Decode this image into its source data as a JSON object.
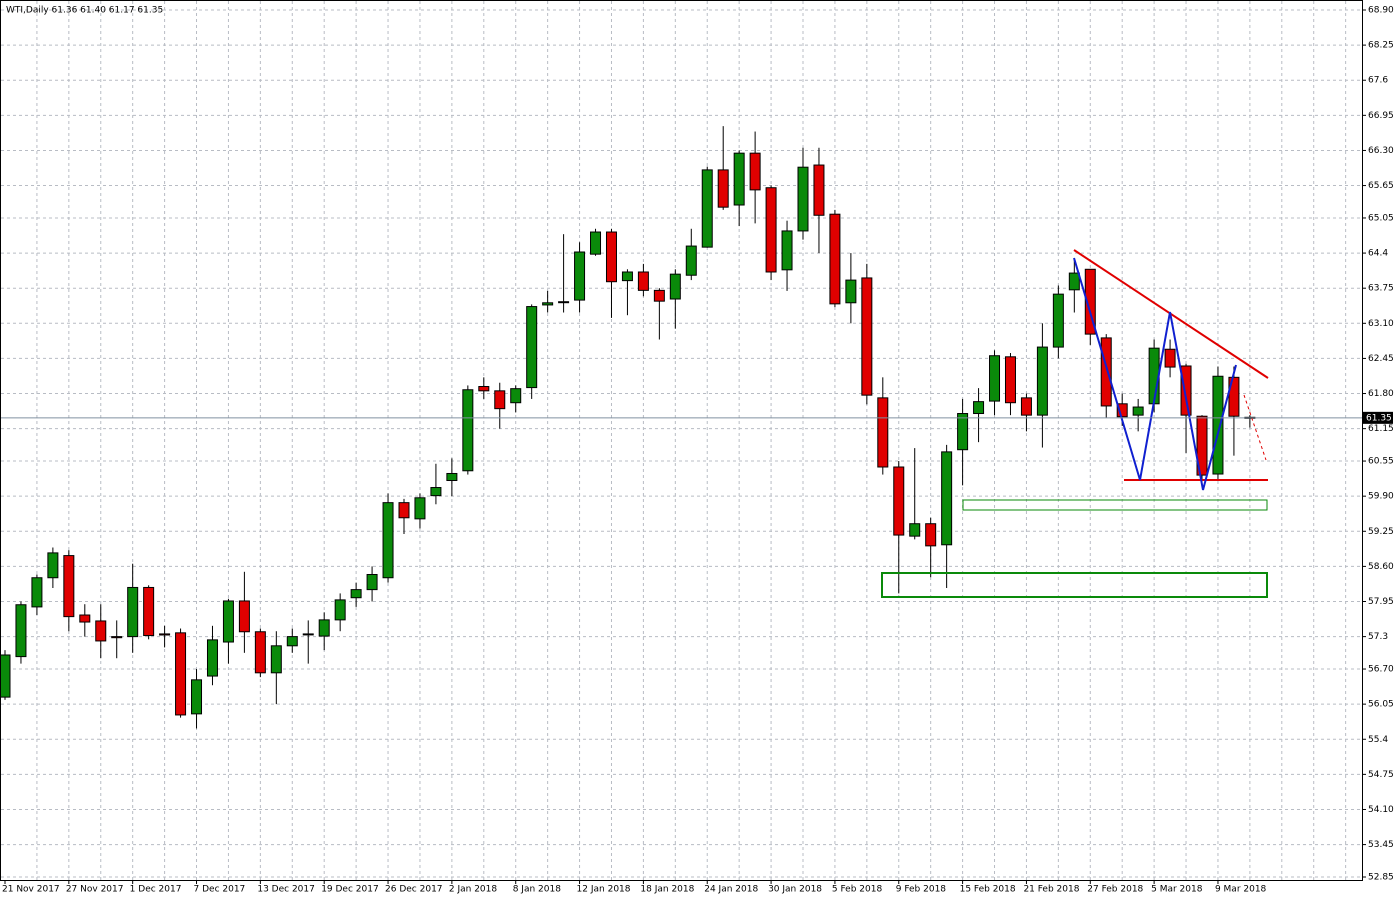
{
  "chart_data": {
    "type": "candlestick",
    "title": "WTI,Daily  61.36 61.40 61.17 61.35",
    "categories": [
      "21 Nov 2017",
      null,
      null,
      null,
      "27 Nov 2017",
      null,
      null,
      null,
      "1 Dec 2017",
      null,
      null,
      null,
      "7 Dec 2017",
      null,
      null,
      null,
      "13 Dec 2017",
      null,
      null,
      null,
      "19 Dec 2017",
      null,
      null,
      null,
      "26 Dec 2017",
      null,
      null,
      null,
      "2 Jan 2018",
      null,
      null,
      null,
      "8 Jan 2018",
      null,
      null,
      null,
      "12 Jan 2018",
      null,
      null,
      null,
      "18 Jan 2018",
      null,
      null,
      null,
      "24 Jan 2018",
      null,
      null,
      null,
      "30 Jan 2018",
      null,
      null,
      null,
      "5 Feb 2018",
      null,
      null,
      null,
      "9 Feb 2018",
      null,
      null,
      null,
      "15 Feb 2018",
      null,
      null,
      null,
      "21 Feb 2018",
      null,
      null,
      null,
      "27 Feb 2018",
      null,
      null,
      null,
      "5 Mar 2018",
      null,
      null,
      null,
      "9 Mar 2018",
      null,
      null
    ],
    "open": [
      56.18,
      56.93,
      57.85,
      58.39,
      58.8,
      57.7,
      57.59,
      57.3,
      57.3,
      58.21,
      57.35,
      57.37,
      55.87,
      56.57,
      57.2,
      57.96,
      57.39,
      56.63,
      57.13,
      57.35,
      57.31,
      57.61,
      58.02,
      58.17,
      58.39,
      59.78,
      59.48,
      59.91,
      60.19,
      60.37,
      61.93,
      61.85,
      61.63,
      61.91,
      63.44,
      63.5,
      63.53,
      64.38,
      64.79,
      63.89,
      64.05,
      63.71,
      63.55,
      63.99,
      64.51,
      65.94,
      65.29,
      66.25,
      65.61,
      64.09,
      64.81,
      66.03,
      65.12,
      63.48,
      63.94,
      61.72,
      60.44,
      59.16,
      59.39,
      59.0,
      60.76,
      61.43,
      61.66,
      62.48,
      61.72,
      61.4,
      62.66,
      63.72,
      64.1,
      62.83,
      61.61,
      61.4,
      61.61,
      62.62,
      62.31,
      61.38,
      60.31,
      62.1,
      61.36
    ],
    "high": [
      57.05,
      57.95,
      58.45,
      58.95,
      58.9,
      57.9,
      57.9,
      57.6,
      58.65,
      58.25,
      57.5,
      57.45,
      56.7,
      57.5,
      58.0,
      58.5,
      57.45,
      57.4,
      57.45,
      57.6,
      57.75,
      58.1,
      58.3,
      58.6,
      59.95,
      59.85,
      59.95,
      60.5,
      60.6,
      61.95,
      62.1,
      62.0,
      61.95,
      63.45,
      63.7,
      64.75,
      64.6,
      64.85,
      64.85,
      64.1,
      64.2,
      63.75,
      64.1,
      64.85,
      66.0,
      66.75,
      66.3,
      66.65,
      65.65,
      65.0,
      66.35,
      66.35,
      65.2,
      64.4,
      64.2,
      62.1,
      60.55,
      60.79,
      59.5,
      60.85,
      61.7,
      61.9,
      62.6,
      62.55,
      61.8,
      63.1,
      63.8,
      64.3,
      64.1,
      62.9,
      61.8,
      61.7,
      62.8,
      62.8,
      62.35,
      61.4,
      62.3,
      62.3,
      61.4
    ],
    "low": [
      56.13,
      56.8,
      57.7,
      58.2,
      57.4,
      57.3,
      56.9,
      56.9,
      57.0,
      57.25,
      57.1,
      55.8,
      55.6,
      56.4,
      56.8,
      57.0,
      56.55,
      56.05,
      57.0,
      56.8,
      57.05,
      57.4,
      57.85,
      57.95,
      58.3,
      59.2,
      59.3,
      59.75,
      59.9,
      60.3,
      61.7,
      61.15,
      61.45,
      61.7,
      63.3,
      63.3,
      63.3,
      64.35,
      63.2,
      63.25,
      63.6,
      62.8,
      63.0,
      63.9,
      64.5,
      65.2,
      64.9,
      64.95,
      63.9,
      63.7,
      64.65,
      64.4,
      63.4,
      63.1,
      61.6,
      60.3,
      58.1,
      59.1,
      58.4,
      58.2,
      60.1,
      60.9,
      61.4,
      61.4,
      61.1,
      60.8,
      62.45,
      63.3,
      62.7,
      61.35,
      61.2,
      61.1,
      61.45,
      62.1,
      60.7,
      60.1,
      60.2,
      60.65,
      61.17
    ],
    "close": [
      56.96,
      57.89,
      58.39,
      58.85,
      57.67,
      57.57,
      57.22,
      57.28,
      58.21,
      57.32,
      57.33,
      55.85,
      56.5,
      57.24,
      57.96,
      57.39,
      56.63,
      57.13,
      57.3,
      57.35,
      57.61,
      57.98,
      58.17,
      58.45,
      59.78,
      59.5,
      59.87,
      60.06,
      60.32,
      61.87,
      61.85,
      61.52,
      61.89,
      63.41,
      63.48,
      63.5,
      64.42,
      64.79,
      63.87,
      64.05,
      63.71,
      63.51,
      64.01,
      64.53,
      65.94,
      65.25,
      66.25,
      65.57,
      64.05,
      64.81,
      65.99,
      65.1,
      63.46,
      63.9,
      61.77,
      60.44,
      59.18,
      59.39,
      58.98,
      60.72,
      61.43,
      61.65,
      62.5,
      61.63,
      61.4,
      62.66,
      63.64,
      64.03,
      62.9,
      61.57,
      61.37,
      61.55,
      62.64,
      62.29,
      61.4,
      60.29,
      62.12,
      61.38,
      61.35
    ],
    "up_color": "#0a8a0a",
    "down_color": "#e00000",
    "current_price": 61.35,
    "ylim": [
      52.85,
      68.9
    ],
    "yticks": [
      {
        "value": 68.9,
        "label": "68.90"
      },
      68.25,
      67.6,
      66.95,
      {
        "value": 66.3,
        "label": "66.30"
      },
      65.65,
      65.05,
      64.4,
      63.75,
      {
        "value": 63.1,
        "label": "63.10"
      },
      62.45,
      {
        "value": 61.8,
        "label": "61.80"
      },
      61.15,
      60.55,
      {
        "value": 59.9,
        "label": "59.90"
      },
      59.25,
      {
        "value": 58.6,
        "label": "58.60"
      },
      57.95,
      57.3,
      {
        "value": 56.7,
        "label": "56.70"
      },
      56.05,
      55.4,
      54.75,
      {
        "value": 54.1,
        "label": "54.10"
      },
      53.45,
      52.85
    ],
    "grid": true
  }
}
